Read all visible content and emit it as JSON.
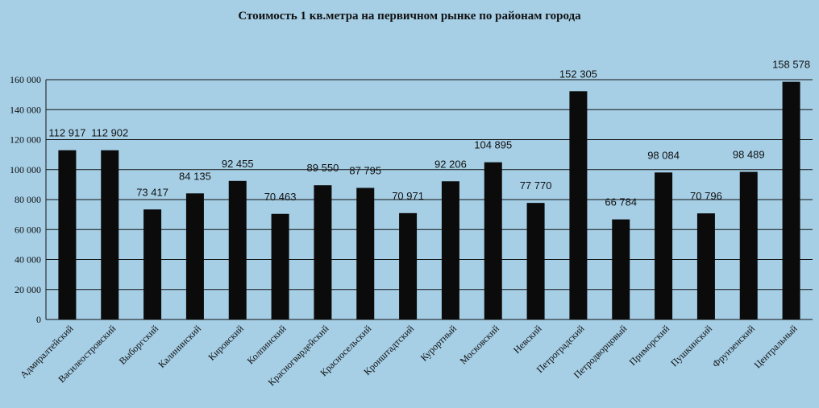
{
  "chart_data": {
    "type": "bar",
    "title": "Стоимость 1 кв.метра на первичном  рынке по районам  города",
    "xlabel": "",
    "ylabel": "",
    "ylim": [
      0,
      160000
    ],
    "yticks": [
      0,
      20000,
      40000,
      60000,
      80000,
      100000,
      120000,
      140000,
      160000
    ],
    "ytick_labels": [
      "0",
      "20 000",
      "40 000",
      "60 000",
      "80 000",
      "100 000",
      "120 000",
      "140 000",
      "160 000"
    ],
    "grid": true,
    "legend": "none",
    "categories": [
      "Адмиралтейский",
      "Василеостровский",
      "Выборгский",
      "Калининский",
      "Кировский",
      "Колпинский",
      "Красногвардейский",
      "Красносельский",
      "Кронштадтский",
      "Курортный",
      "Московский",
      "Невский",
      "Петроградский",
      "Петродворцовый",
      "Приморский",
      "Пушкинский",
      "Фрунзенский",
      "Центральный"
    ],
    "values": [
      112917,
      112902,
      73417,
      84135,
      92455,
      70463,
      89550,
      87795,
      70971,
      92206,
      104895,
      77770,
      152305,
      66784,
      98084,
      70796,
      98489,
      158578
    ],
    "value_labels": [
      "112 917",
      "112 902",
      "73 417",
      "84 135",
      "92 455",
      "70 463",
      "89 550",
      "87 795",
      "70 971",
      "92 206",
      "104 895",
      "77 770",
      "152 305",
      "66 784",
      "98 084",
      "70 796",
      "98 489",
      "158 578"
    ],
    "colors": {
      "background": "#a6cfe6",
      "bar": "#0b0b0b",
      "text": "#111111"
    }
  }
}
